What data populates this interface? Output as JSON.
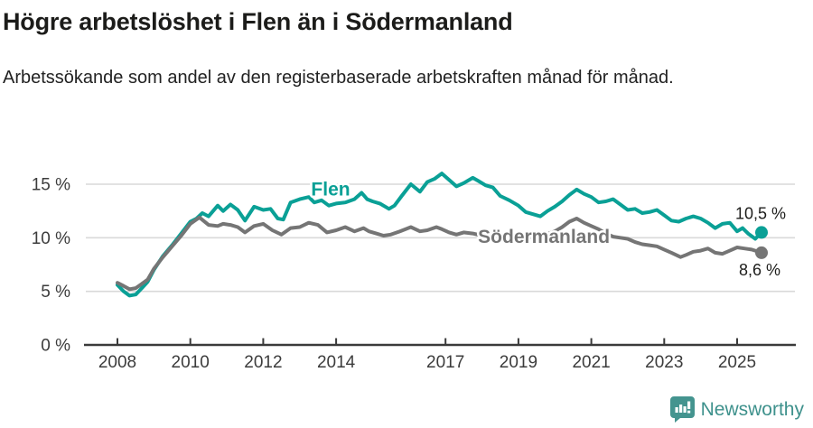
{
  "header": {
    "title": "Högre arbetslöshet i Flen än i Södermanland",
    "subtitle": "Arbetssökande som andel av den registerbaserade arbetskraften månad för månad."
  },
  "footer": {
    "brand": "Newsworthy"
  },
  "colors": {
    "flen": "#0aa096",
    "sodermanland": "#757575",
    "grid": "#d9d9d9",
    "axis": "#3a3a3a",
    "tick_text": "#3c3c3c",
    "value_text": "#1d1d1b",
    "logo": "#44948f"
  },
  "chart_data": {
    "type": "line",
    "title": "Högre arbetslöshet i Flen än i Södermanland",
    "subtitle": "Arbetssökande som andel av den registerbaserade arbetskraften månad för månad.",
    "unit": "%",
    "xlim": [
      2007.6,
      2026.2
    ],
    "ylim": [
      0,
      16.5
    ],
    "grid": "horizontal",
    "x_ticks": [
      2008,
      2010,
      2012,
      2014,
      2017,
      2019,
      2021,
      2023,
      2025
    ],
    "y_ticks": [
      0,
      5,
      10,
      15
    ],
    "y_tick_suffix": " %",
    "series": [
      {
        "id": "flen",
        "name": "Flen",
        "color": "#0aa096",
        "end_label": "10,5 %",
        "end_value": 10.5,
        "end_label_offset": [
          -1,
          -15
        ],
        "label_pos": {
          "x": 2013.85,
          "y": 14.55
        },
        "points": [
          [
            2008.0,
            5.6
          ],
          [
            2008.17,
            5.0
          ],
          [
            2008.33,
            4.6
          ],
          [
            2008.5,
            4.7
          ],
          [
            2008.67,
            5.3
          ],
          [
            2008.83,
            5.9
          ],
          [
            2009.0,
            7.0
          ],
          [
            2009.25,
            8.3
          ],
          [
            2009.5,
            9.3
          ],
          [
            2009.75,
            10.4
          ],
          [
            2010.0,
            11.5
          ],
          [
            2010.17,
            11.8
          ],
          [
            2010.33,
            12.3
          ],
          [
            2010.5,
            12.0
          ],
          [
            2010.75,
            13.0
          ],
          [
            2010.9,
            12.5
          ],
          [
            2011.1,
            13.1
          ],
          [
            2011.3,
            12.6
          ],
          [
            2011.5,
            11.6
          ],
          [
            2011.75,
            12.9
          ],
          [
            2012.0,
            12.6
          ],
          [
            2012.2,
            12.7
          ],
          [
            2012.4,
            11.8
          ],
          [
            2012.55,
            11.7
          ],
          [
            2012.75,
            13.3
          ],
          [
            2013.0,
            13.6
          ],
          [
            2013.25,
            13.8
          ],
          [
            2013.4,
            13.3
          ],
          [
            2013.6,
            13.5
          ],
          [
            2013.8,
            13.0
          ],
          [
            2014.0,
            13.2
          ],
          [
            2014.25,
            13.3
          ],
          [
            2014.5,
            13.6
          ],
          [
            2014.7,
            14.2
          ],
          [
            2014.85,
            13.6
          ],
          [
            2015.0,
            13.4
          ],
          [
            2015.2,
            13.2
          ],
          [
            2015.45,
            12.7
          ],
          [
            2015.6,
            13.0
          ],
          [
            2015.8,
            13.9
          ],
          [
            2016.05,
            15.0
          ],
          [
            2016.3,
            14.3
          ],
          [
            2016.5,
            15.2
          ],
          [
            2016.7,
            15.5
          ],
          [
            2016.9,
            16.0
          ],
          [
            2017.1,
            15.4
          ],
          [
            2017.3,
            14.8
          ],
          [
            2017.5,
            15.1
          ],
          [
            2017.75,
            15.6
          ],
          [
            2017.9,
            15.3
          ],
          [
            2018.1,
            14.9
          ],
          [
            2018.3,
            14.7
          ],
          [
            2018.5,
            13.9
          ],
          [
            2018.75,
            13.5
          ],
          [
            2019.0,
            13.0
          ],
          [
            2019.2,
            12.4
          ],
          [
            2019.4,
            12.2
          ],
          [
            2019.6,
            12.0
          ],
          [
            2019.8,
            12.5
          ],
          [
            2020.0,
            12.9
          ],
          [
            2020.2,
            13.4
          ],
          [
            2020.4,
            14.0
          ],
          [
            2020.6,
            14.5
          ],
          [
            2020.8,
            14.1
          ],
          [
            2021.0,
            13.8
          ],
          [
            2021.2,
            13.3
          ],
          [
            2021.4,
            13.4
          ],
          [
            2021.6,
            13.6
          ],
          [
            2021.8,
            13.1
          ],
          [
            2022.0,
            12.6
          ],
          [
            2022.2,
            12.7
          ],
          [
            2022.4,
            12.3
          ],
          [
            2022.6,
            12.4
          ],
          [
            2022.8,
            12.6
          ],
          [
            2023.0,
            12.1
          ],
          [
            2023.2,
            11.6
          ],
          [
            2023.4,
            11.5
          ],
          [
            2023.6,
            11.8
          ],
          [
            2023.8,
            12.0
          ],
          [
            2024.0,
            11.8
          ],
          [
            2024.2,
            11.4
          ],
          [
            2024.4,
            10.9
          ],
          [
            2024.6,
            11.3
          ],
          [
            2024.8,
            11.4
          ],
          [
            2025.0,
            10.6
          ],
          [
            2025.15,
            10.9
          ],
          [
            2025.3,
            10.4
          ],
          [
            2025.5,
            9.9
          ],
          [
            2025.67,
            10.5
          ]
        ]
      },
      {
        "id": "sodermanland",
        "name": "Södermanland",
        "color": "#757575",
        "end_label": "8,6 %",
        "end_value": 8.6,
        "end_label_offset": [
          -2,
          25
        ],
        "label_pos": {
          "x": 2019.7,
          "y": 10.1
        },
        "points": [
          [
            2008.0,
            5.8
          ],
          [
            2008.17,
            5.5
          ],
          [
            2008.33,
            5.2
          ],
          [
            2008.5,
            5.3
          ],
          [
            2008.67,
            5.7
          ],
          [
            2008.83,
            6.1
          ],
          [
            2009.0,
            7.1
          ],
          [
            2009.25,
            8.2
          ],
          [
            2009.5,
            9.2
          ],
          [
            2009.75,
            10.2
          ],
          [
            2010.0,
            11.3
          ],
          [
            2010.25,
            11.9
          ],
          [
            2010.5,
            11.2
          ],
          [
            2010.75,
            11.1
          ],
          [
            2010.9,
            11.3
          ],
          [
            2011.1,
            11.2
          ],
          [
            2011.3,
            11.0
          ],
          [
            2011.5,
            10.5
          ],
          [
            2011.75,
            11.1
          ],
          [
            2012.0,
            11.3
          ],
          [
            2012.25,
            10.7
          ],
          [
            2012.5,
            10.3
          ],
          [
            2012.75,
            10.9
          ],
          [
            2013.0,
            11.0
          ],
          [
            2013.25,
            11.4
          ],
          [
            2013.5,
            11.2
          ],
          [
            2013.75,
            10.5
          ],
          [
            2014.0,
            10.7
          ],
          [
            2014.25,
            11.0
          ],
          [
            2014.5,
            10.6
          ],
          [
            2014.75,
            10.9
          ],
          [
            2014.9,
            10.6
          ],
          [
            2015.1,
            10.4
          ],
          [
            2015.3,
            10.2
          ],
          [
            2015.5,
            10.3
          ],
          [
            2015.75,
            10.6
          ],
          [
            2016.05,
            11.0
          ],
          [
            2016.3,
            10.6
          ],
          [
            2016.5,
            10.7
          ],
          [
            2016.75,
            11.0
          ],
          [
            2016.9,
            10.8
          ],
          [
            2017.1,
            10.5
          ],
          [
            2017.3,
            10.3
          ],
          [
            2017.5,
            10.5
          ],
          [
            2017.75,
            10.4
          ],
          [
            2018.0,
            10.2
          ],
          [
            2018.25,
            10.3
          ],
          [
            2018.5,
            10.0
          ],
          [
            2018.75,
            10.1
          ],
          [
            2019.0,
            10.0
          ],
          [
            2019.25,
            10.1
          ],
          [
            2019.5,
            9.9
          ],
          [
            2019.75,
            10.3
          ],
          [
            2020.0,
            10.6
          ],
          [
            2020.2,
            11.0
          ],
          [
            2020.4,
            11.5
          ],
          [
            2020.6,
            11.8
          ],
          [
            2020.8,
            11.4
          ],
          [
            2021.0,
            11.1
          ],
          [
            2021.2,
            10.8
          ],
          [
            2021.4,
            10.4
          ],
          [
            2021.6,
            10.1
          ],
          [
            2021.8,
            10.0
          ],
          [
            2022.0,
            9.9
          ],
          [
            2022.2,
            9.6
          ],
          [
            2022.4,
            9.4
          ],
          [
            2022.6,
            9.3
          ],
          [
            2022.8,
            9.2
          ],
          [
            2023.0,
            8.9
          ],
          [
            2023.2,
            8.6
          ],
          [
            2023.45,
            8.2
          ],
          [
            2023.6,
            8.4
          ],
          [
            2023.8,
            8.7
          ],
          [
            2024.0,
            8.8
          ],
          [
            2024.2,
            9.0
          ],
          [
            2024.4,
            8.6
          ],
          [
            2024.6,
            8.5
          ],
          [
            2024.8,
            8.8
          ],
          [
            2025.0,
            9.1
          ],
          [
            2025.2,
            9.0
          ],
          [
            2025.4,
            8.9
          ],
          [
            2025.67,
            8.6
          ]
        ]
      }
    ]
  }
}
